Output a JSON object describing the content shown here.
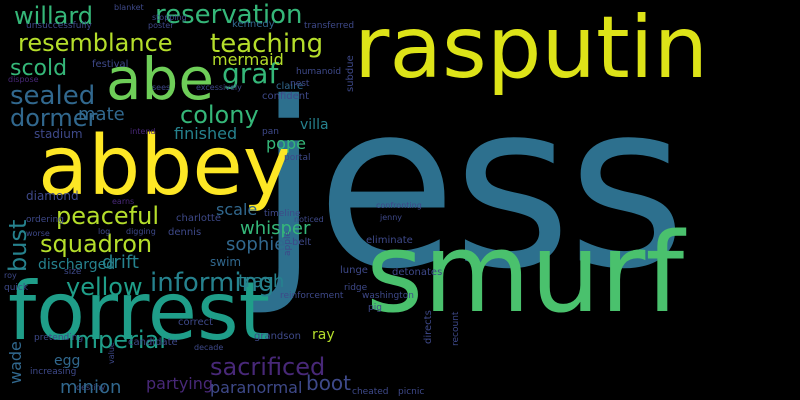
{
  "background": "#000000",
  "palette": {
    "yellow": "#fde725",
    "lime": "#b5de2b",
    "green": "#6ece58",
    "mint": "#35b779",
    "teal": "#1f9e89",
    "cyan": "#26828e",
    "blue": "#31688e",
    "indigo": "#3e4989",
    "purple": "#482878",
    "violet": "#440154"
  },
  "words": [
    "jess",
    "rasputin",
    "smurf",
    "abbey",
    "forrest",
    "abe",
    "resemblance",
    "teaching",
    "reservation",
    "willard",
    "scold",
    "sealed",
    "graf",
    "mermaid",
    "colony",
    "dormer",
    "mate",
    "finished",
    "bust",
    "peaceful",
    "squadron",
    "informing",
    "yellow",
    "discharged",
    "drift",
    "trash",
    "whisper",
    "scale",
    "sophie",
    "penny",
    "sandy",
    "liz",
    "honeymoon",
    "grew",
    "persuaded",
    "villager",
    "hoffman",
    "bleeding",
    "elsa",
    "luke",
    "papa",
    "confession",
    "defeated",
    "nicholas",
    "template",
    "carmen",
    "centre",
    "delta",
    "lantern",
    "horn",
    "dottie",
    "sanctuary",
    "ken",
    "lorraine",
    "manning",
    "vent",
    "boot",
    "partying",
    "paranormal",
    "sacrificed",
    "imperial",
    "minion",
    "wade",
    "egg",
    "drill",
    "beard",
    "craig",
    "ray",
    "pope",
    "villa",
    "blair",
    "net",
    "distraction",
    "cannon",
    "revived",
    "apache",
    "curious",
    "impales",
    "butterfly",
    "concise",
    "ellen",
    "stole",
    "angered",
    "dimitri",
    "defeating",
    "shuts",
    "realized",
    "editor",
    "canyon",
    "psychic",
    "grandson",
    "correct",
    "candidate",
    "swim",
    "dennis",
    "charlotte",
    "diamond",
    "stadium",
    "dispose",
    "festival",
    "kennedy",
    "transferred",
    "unsuccessfully",
    "poster",
    "stopping",
    "blanket",
    "pursuer",
    "patron",
    "graham",
    "frankie",
    "humanoid",
    "nest",
    "confident",
    "claire",
    "excessively",
    "pan",
    "portal",
    "subdue",
    "abduction",
    "unnecessary",
    "researcher",
    "laugh",
    "sewer",
    "guitar",
    "morale",
    "awarded",
    "hatch",
    "reunites",
    "stepfather",
    "nun",
    "elliot",
    "adoptive",
    "amnesia",
    "winter",
    "capturing",
    "according",
    "recognizing",
    "unstable",
    "marie",
    "reggie",
    "quiet",
    "burke",
    "price",
    "peasant",
    "encountered",
    "mechanical",
    "remembering",
    "runner",
    "spreading",
    "electricity",
    "directs",
    "recount",
    "picnic",
    "cheated",
    "subdues",
    "coffee",
    "soul",
    "dan",
    "wrist",
    "pig",
    "washington",
    "ridge",
    "lunge",
    "semi",
    "reinforcement",
    "detonates",
    "eliminate",
    "belt",
    "apple",
    "timeline",
    "noticed",
    "jenny",
    "confronting",
    "misunderstanding",
    "locates",
    "handcuff",
    "grenade",
    "raising",
    "ear",
    "lawman",
    "size",
    "roy",
    "log",
    "digging",
    "ordering",
    "worse",
    "quick",
    "pretending",
    "increasing",
    "destiny",
    "decade",
    "value",
    "earns",
    "intend",
    "sees"
  ]
}
